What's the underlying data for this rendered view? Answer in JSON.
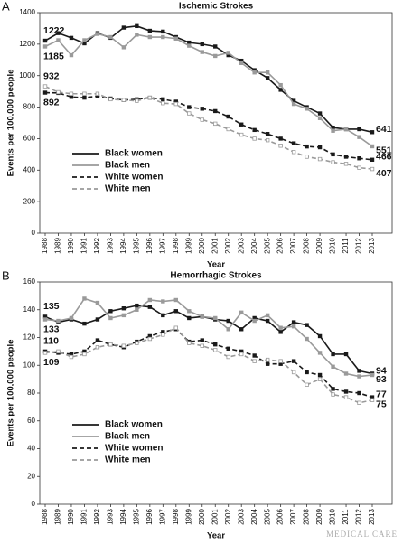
{
  "chart_data": [
    {
      "type": "line",
      "panel": "A",
      "title": "Ischemic Strokes",
      "xlabel": "Year",
      "ylabel": "Events per 100,000 people",
      "categories": [
        "1988",
        "1989",
        "1990",
        "1991",
        "1992",
        "1993",
        "1994",
        "1995",
        "1996",
        "1997",
        "1998",
        "1999",
        "2000",
        "2001",
        "2002",
        "2003",
        "2004",
        "2005",
        "2006",
        "2007",
        "2008",
        "2009",
        "2010",
        "2011",
        "2012",
        "2013"
      ],
      "ylim": [
        0,
        1400
      ],
      "yticks": [
        0,
        200,
        400,
        600,
        800,
        1000,
        1200,
        1400
      ],
      "legend": "lower left",
      "series": [
        {
          "name": "Black women",
          "color": "#1a1a1a",
          "dashed": false,
          "values": [
            1222,
            1270,
            1240,
            1205,
            1270,
            1240,
            1305,
            1315,
            1285,
            1280,
            1245,
            1210,
            1200,
            1185,
            1130,
            1095,
            1035,
            985,
            910,
            840,
            800,
            760,
            670,
            660,
            660,
            641
          ]
        },
        {
          "name": "Black men",
          "color": "#9a9a9a",
          "dashed": false,
          "values": [
            1185,
            1225,
            1130,
            1225,
            1265,
            1245,
            1180,
            1260,
            1245,
            1245,
            1235,
            1190,
            1150,
            1125,
            1145,
            1080,
            1020,
            1020,
            940,
            820,
            790,
            730,
            650,
            660,
            610,
            551
          ]
        },
        {
          "name": "White women",
          "color": "#1a1a1a",
          "dashed": true,
          "values": [
            892,
            890,
            865,
            860,
            870,
            855,
            845,
            850,
            860,
            850,
            835,
            800,
            790,
            775,
            740,
            690,
            655,
            630,
            600,
            570,
            550,
            545,
            500,
            485,
            475,
            466
          ]
        },
        {
          "name": "White men",
          "color": "#9a9a9a",
          "dashed": true,
          "values": [
            932,
            895,
            885,
            885,
            885,
            850,
            845,
            840,
            860,
            825,
            820,
            760,
            720,
            695,
            660,
            625,
            600,
            590,
            555,
            515,
            485,
            470,
            450,
            440,
            415,
            407
          ]
        }
      ]
    },
    {
      "type": "line",
      "panel": "B",
      "title": "Hemorrhagic Strokes",
      "xlabel": "Year",
      "ylabel": "Events per 100,000 people",
      "categories": [
        "1988",
        "1989",
        "1990",
        "1991",
        "1992",
        "1993",
        "1994",
        "1995",
        "1996",
        "1997",
        "1998",
        "1999",
        "2000",
        "2001",
        "2002",
        "2003",
        "2004",
        "2005",
        "2006",
        "2007",
        "2008",
        "2009",
        "2010",
        "2011",
        "2012",
        "2013"
      ],
      "ylim": [
        0,
        160
      ],
      "yticks": [
        0,
        20,
        40,
        60,
        80,
        100,
        120,
        140,
        160
      ],
      "legend": "lower left",
      "series": [
        {
          "name": "Black women",
          "color": "#1a1a1a",
          "dashed": false,
          "values": [
            135,
            131,
            133,
            130,
            133,
            139,
            141,
            143,
            142,
            136,
            139,
            134,
            135,
            133,
            132,
            126,
            134,
            132,
            124,
            131,
            129,
            121,
            108,
            108,
            96,
            94
          ]
        },
        {
          "name": "Black men",
          "color": "#9a9a9a",
          "dashed": false,
          "values": [
            133,
            132,
            134,
            148,
            145,
            134,
            136,
            140,
            147,
            146,
            147,
            139,
            135,
            134,
            126,
            138,
            132,
            136,
            127,
            128,
            119,
            109,
            99,
            94,
            92,
            93
          ]
        },
        {
          "name": "White women",
          "color": "#1a1a1a",
          "dashed": true,
          "values": [
            110,
            109,
            108,
            110,
            118,
            115,
            113,
            117,
            121,
            124,
            126,
            117,
            118,
            115,
            112,
            110,
            107,
            101,
            101,
            103,
            95,
            93,
            83,
            81,
            80,
            77
          ]
        },
        {
          "name": "White men",
          "color": "#9a9a9a",
          "dashed": true,
          "values": [
            109,
            110,
            106,
            108,
            113,
            115,
            114,
            116,
            119,
            122,
            127,
            116,
            114,
            111,
            106,
            108,
            103,
            104,
            103,
            95,
            86,
            90,
            79,
            77,
            73,
            75
          ]
        }
      ]
    }
  ],
  "watermark": "MEDICAL CARE"
}
